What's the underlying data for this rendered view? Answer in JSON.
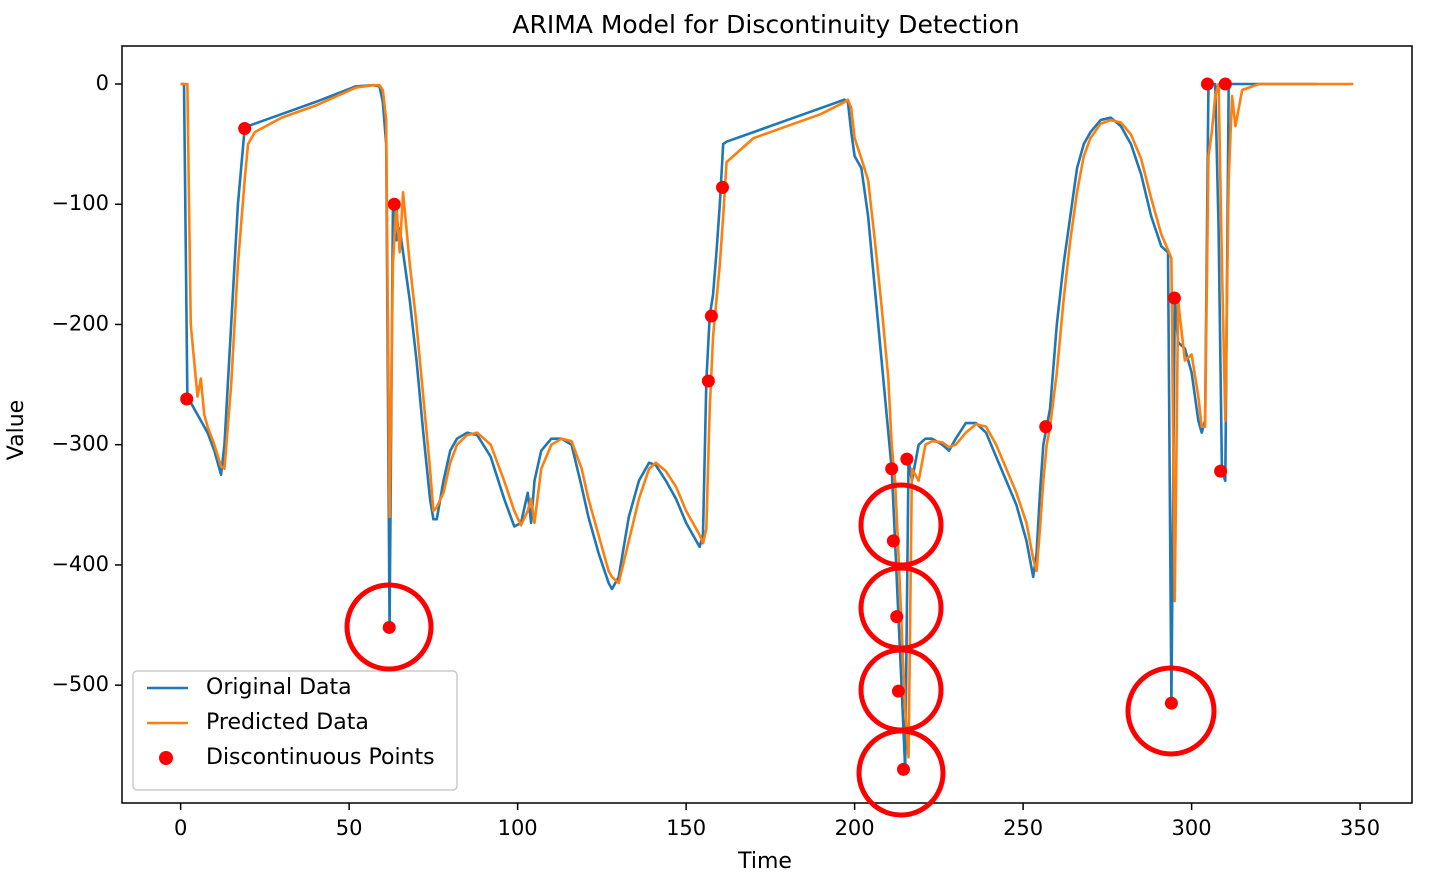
{
  "chart_data": {
    "type": "line",
    "title": "ARIMA Model for Discontinuity Detection",
    "x_label": "Time",
    "y_label": "Value",
    "xlim": [
      -17.4,
      365.4
    ],
    "ylim": [
      -598,
      31.6
    ],
    "xticks": [
      0,
      50,
      100,
      150,
      200,
      250,
      300,
      350
    ],
    "yticks": [
      {
        "value": 0,
        "label": "0"
      },
      {
        "value": -100,
        "label": "−100"
      },
      {
        "value": -200,
        "label": "−200"
      },
      {
        "value": -300,
        "label": "−300"
      },
      {
        "value": -400,
        "label": "−400"
      },
      {
        "value": -500,
        "label": "−500"
      }
    ],
    "legend": "lower left",
    "grid": false,
    "x": [
      0,
      1,
      2,
      3,
      5,
      6,
      7,
      8,
      10,
      12,
      13,
      15,
      17,
      19,
      20,
      22,
      30,
      40,
      52,
      57,
      59,
      60,
      61,
      62,
      63,
      64,
      65,
      66,
      68,
      70,
      72,
      74,
      75,
      76,
      78,
      80,
      82,
      85,
      88,
      92,
      96,
      99,
      101,
      103,
      104,
      105,
      107,
      110,
      113,
      116,
      119,
      121,
      124,
      127,
      128,
      130,
      133,
      136,
      139,
      141,
      144,
      147,
      150,
      152,
      154,
      155,
      156,
      157,
      158,
      159,
      160,
      161,
      162,
      170,
      180,
      190,
      197,
      198,
      199,
      200,
      202,
      204,
      206,
      208,
      210,
      211,
      212,
      213,
      214,
      215,
      216,
      217,
      219,
      221,
      223,
      226,
      228,
      230,
      233,
      236,
      239,
      242,
      245,
      248,
      251,
      253,
      254,
      255,
      256,
      257,
      258,
      260,
      262,
      264,
      266,
      268,
      270,
      273,
      276,
      279,
      282,
      285,
      288,
      291,
      293,
      294,
      295,
      296,
      298,
      300,
      302,
      303,
      304,
      305,
      306,
      307,
      308,
      309,
      310,
      311,
      312,
      313,
      315,
      320,
      337,
      348
    ],
    "series": [
      {
        "name": "Original Data",
        "color": "#1f77b4",
        "values": [
          0,
          0,
          -262,
          -265,
          -275,
          -280,
          -285,
          -290,
          -305,
          -325,
          -300,
          -200,
          -100,
          -37,
          -35,
          -33,
          -25,
          -15,
          -2,
          -1,
          -2,
          -15,
          -50,
          -452,
          -100,
          -130,
          -120,
          -140,
          -180,
          -230,
          -290,
          -345,
          -362,
          -362,
          -330,
          -305,
          -295,
          -290,
          -292,
          -310,
          -345,
          -368,
          -365,
          -340,
          -365,
          -330,
          -305,
          -295,
          -295,
          -300,
          -335,
          -360,
          -390,
          -415,
          -420,
          -410,
          -360,
          -330,
          -315,
          -317,
          -330,
          -345,
          -365,
          -375,
          -385,
          -375,
          -247,
          -193,
          -175,
          -140,
          -100,
          -50,
          -48,
          -40,
          -30,
          -20,
          -13,
          -15,
          -40,
          -60,
          -70,
          -110,
          -170,
          -230,
          -290,
          -320,
          -380,
          -443,
          -505,
          -570,
          -312,
          -330,
          -300,
          -295,
          -295,
          -300,
          -305,
          -295,
          -282,
          -282,
          -290,
          -310,
          -330,
          -350,
          -380,
          -410,
          -390,
          -340,
          -300,
          -285,
          -270,
          -200,
          -150,
          -110,
          -70,
          -50,
          -40,
          -30,
          -28,
          -35,
          -50,
          -75,
          -110,
          -135,
          -140,
          -515,
          -178,
          -215,
          -220,
          -240,
          -280,
          -290,
          -280,
          0,
          0,
          0,
          -120,
          -322,
          -330,
          0,
          0,
          0,
          0,
          0,
          0,
          null
        ]
      },
      {
        "name": "Predicted Data",
        "color": "#ff7f0e",
        "values": [
          0,
          0,
          0,
          -200,
          -260,
          -245,
          -275,
          -285,
          -300,
          -318,
          -320,
          -250,
          -150,
          -80,
          -50,
          -40,
          -28,
          -18,
          -3,
          -1,
          -1,
          -5,
          -30,
          -360,
          -150,
          -100,
          -140,
          -90,
          -150,
          -200,
          -260,
          -320,
          -355,
          -352,
          -340,
          -315,
          -300,
          -292,
          -290,
          -300,
          -330,
          -355,
          -367,
          -355,
          -345,
          -365,
          -320,
          -300,
          -295,
          -297,
          -320,
          -345,
          -375,
          -405,
          -410,
          -415,
          -380,
          -345,
          -320,
          -315,
          -322,
          -335,
          -355,
          -365,
          -375,
          -382,
          -370,
          -270,
          -210,
          -180,
          -150,
          -110,
          -65,
          -45,
          -35,
          -25,
          -15,
          -13,
          -20,
          -45,
          -62,
          -80,
          -130,
          -185,
          -245,
          -300,
          -330,
          -390,
          -455,
          -520,
          -560,
          -320,
          -330,
          -300,
          -297,
          -298,
          -302,
          -300,
          -290,
          -283,
          -285,
          -300,
          -320,
          -340,
          -365,
          -395,
          -405,
          -370,
          -330,
          -300,
          -285,
          -240,
          -180,
          -130,
          -90,
          -60,
          -45,
          -33,
          -30,
          -32,
          -42,
          -62,
          -95,
          -125,
          -138,
          -145,
          -430,
          -180,
          -230,
          -225,
          -260,
          -285,
          -285,
          -60,
          -40,
          -10,
          0,
          -150,
          -280,
          -80,
          -10,
          -35,
          -5,
          0,
          0,
          0
        ]
      },
      {
        "name": "Discontinuous Points",
        "color": "#ff0000",
        "type": "scatter",
        "x": [
          1.8,
          19,
          61.9,
          63.4,
          156.6,
          157.5,
          160.8,
          211,
          211.5,
          212.5,
          213,
          214.5,
          215.5,
          256.7,
          294,
          294.9,
          304.7,
          308.6,
          310
        ],
        "values": [
          -262,
          -37,
          -452,
          -100,
          -247,
          -193,
          -86,
          -320,
          -380,
          -443,
          -505,
          -570,
          -312,
          -285,
          -515,
          -178,
          0,
          -322,
          0
        ]
      }
    ]
  }
}
